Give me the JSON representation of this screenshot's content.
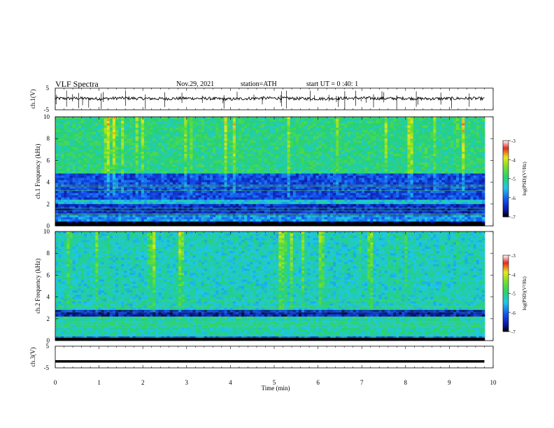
{
  "header": {
    "title": "VLF Spectra",
    "date": "Nov.29, 2021",
    "station": "station=ATH",
    "start": "start UT = 0 :40: 1"
  },
  "colors": {
    "spectrogram_base": "#2ad07a",
    "band_dark_blue": "#0a1aa8",
    "band_blue": "#1a5cf0",
    "burst_yellow": "#e8e020",
    "burst_red": "#e02020",
    "trace": "#000000"
  },
  "chart_data": [
    {
      "type": "line",
      "name": "ch.1 waveform",
      "ylabel": "ch.1(V)",
      "ylim": [
        -5,
        5
      ],
      "yticks": [
        "5",
        "-5"
      ],
      "xlim": [
        0,
        10
      ],
      "x": [
        0,
        0.5,
        1,
        1.5,
        2,
        2.5,
        3,
        3.5,
        4,
        4.5,
        5,
        5.5,
        6,
        6.5,
        7,
        7.5,
        8,
        8.5,
        9,
        9.5,
        9.8
      ],
      "y": [
        0.2,
        0.3,
        0.1,
        0.4,
        0.2,
        0.1,
        0.3,
        0.2,
        -0.1,
        0.3,
        0.4,
        0.2,
        0.1,
        0.3,
        0.4,
        0.2,
        0.3,
        0.1,
        0.2,
        0.3,
        0.1
      ]
    },
    {
      "type": "heatmap",
      "name": "ch.1 spectrogram",
      "ylabel": "ch.1 Frequency (kHz)",
      "ylim": [
        0,
        10
      ],
      "yticks": [
        "0",
        "2",
        "4",
        "6",
        "8",
        "10"
      ],
      "xlim": [
        0,
        10
      ],
      "colorbar": {
        "label": "log(PSD)(V²/Hz)",
        "ticks": [
          "-3",
          "-4",
          "-5",
          "-6",
          "-7"
        ],
        "range": [
          -7,
          -3
        ]
      },
      "bands": [
        {
          "fmin": 0.0,
          "fmax": 0.4,
          "level": -7
        },
        {
          "fmin": 0.4,
          "fmax": 1.0,
          "level": -5.8
        },
        {
          "fmin": 1.0,
          "fmax": 2.0,
          "level": -6.4
        },
        {
          "fmin": 2.0,
          "fmax": 2.5,
          "level": -5.4
        },
        {
          "fmin": 2.5,
          "fmax": 4.8,
          "level": -6.2
        },
        {
          "fmin": 4.8,
          "fmax": 10.0,
          "level": -5.0
        }
      ]
    },
    {
      "type": "heatmap",
      "name": "ch.2 spectrogram",
      "ylabel": "ch.2 Frequency (kHz)",
      "ylim": [
        0,
        10
      ],
      "yticks": [
        "0",
        "2",
        "4",
        "6",
        "8",
        "10"
      ],
      "xlim": [
        0,
        10
      ],
      "colorbar": {
        "label": "log(PSD)(V²/Hz)",
        "ticks": [
          "-3",
          "-4",
          "-5",
          "-6",
          "-7"
        ],
        "range": [
          -7,
          -3
        ]
      },
      "bands": [
        {
          "fmin": 0.0,
          "fmax": 0.4,
          "level": -6.0
        },
        {
          "fmin": 0.4,
          "fmax": 2.0,
          "level": -5.2
        },
        {
          "fmin": 2.0,
          "fmax": 2.3,
          "level": -5.0
        },
        {
          "fmin": 2.3,
          "fmax": 2.8,
          "level": -6.5
        },
        {
          "fmin": 2.8,
          "fmax": 10.0,
          "level": -5.3
        }
      ]
    },
    {
      "type": "line",
      "name": "ch.3 waveform",
      "ylabel": "ch.3(V)",
      "ylim": [
        -5,
        5
      ],
      "yticks": [
        "5",
        "-5"
      ],
      "xlim": [
        0,
        10
      ],
      "x": [
        0,
        9.8
      ],
      "y": [
        -2,
        -2
      ]
    }
  ],
  "xaxis": {
    "label": "Time (min)",
    "ticks": [
      "0",
      "1",
      "2",
      "3",
      "4",
      "5",
      "6",
      "7",
      "8",
      "9",
      "10"
    ]
  }
}
